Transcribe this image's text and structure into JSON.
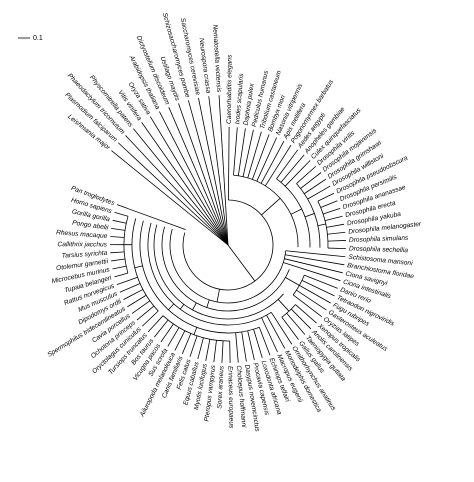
{
  "scale_bar": "0.1",
  "taxa": [
    "Leishmania major",
    "Plasmodium falciparum",
    "Phaeodactylum tricornutum",
    "Physcomitrella patens",
    "Vitis vinifera",
    "Oryza sativa",
    "Arabidopsis thaliana",
    "Dictyostelium discoideum",
    "Ustilago maydis",
    "Schizosaccharomyces pombe",
    "Saccharomyces cerevisiae",
    "Neurospora crassa",
    "Nematostella vectensis",
    "Caenorhabditis elegans",
    "Ixodes scapularis",
    "Daphnia pulex",
    "Pediculus humanus",
    "Tribolium castaneum",
    "Bombyx mori",
    "Nasonia vitripennis",
    "Apis mellifera",
    "Pogonomyrmex barbatus",
    "Aedes aegypti",
    "Anopheles gambiae",
    "Culex quinquefasciatus",
    "Drosophila virilis",
    "Drosophila mojavensis",
    "Drosophila grimshawi",
    "Drosophila willistoni",
    "Drosophila pseudoobscura",
    "Drosophila persimilis",
    "Drosophila ananassae",
    "Drosophila erecta",
    "Drosophila yakuba",
    "Drosophila melanogaster",
    "Drosophila simulans",
    "Drosophila sechellia",
    "Schistosoma mansoni",
    "Branchiostoma floridae",
    "Ciona savignyi",
    "Ciona intestinalis",
    "Danio rerio",
    "Tetraodon nigroviridis",
    "Fugu rubripes",
    "Gasterosteus aculeatus",
    "Oryzias latipes",
    "Xenopus tropicalis",
    "Anolis carolinensis",
    "Taeniopygia guttata",
    "Gallus gallus",
    "Ornithorhynchus anatinus",
    "Monodelphis domestica",
    "Macropus eugenii",
    "Echinops telfairi",
    "Loxodonta africana",
    "Procavia capensis",
    "Dasypus novemcinctus",
    "Choloepus hoffmanni",
    "Erinaceus europaeus",
    "Sorex araneus",
    "Pteropus vampyrus",
    "Myotis lucifugus",
    "Equus caballus",
    "Felis catus",
    "Canis familiaris",
    "Ailuropoda melanoleuca",
    "Sus scrofa",
    "Vicugna pacos",
    "Bos taurus",
    "Tursiops truncatus",
    "Oryctolagus cuniculus",
    "Ochotona princeps",
    "Cavia porcellus",
    "Spermophilus tridecemlineatus",
    "Dipodomys ordii",
    "Mus musculus",
    "Rattus norvegicus",
    "Tupaia belangeri",
    "Microcebus murinus",
    "Otolemur garnettii",
    "Tarsius syrichta",
    "Callithrix jacchus",
    "Rhesus macaque",
    "Pongo abelii",
    "Gorilla gorilla",
    "Homo sapiens",
    "Pan troglodytes"
  ]
}
